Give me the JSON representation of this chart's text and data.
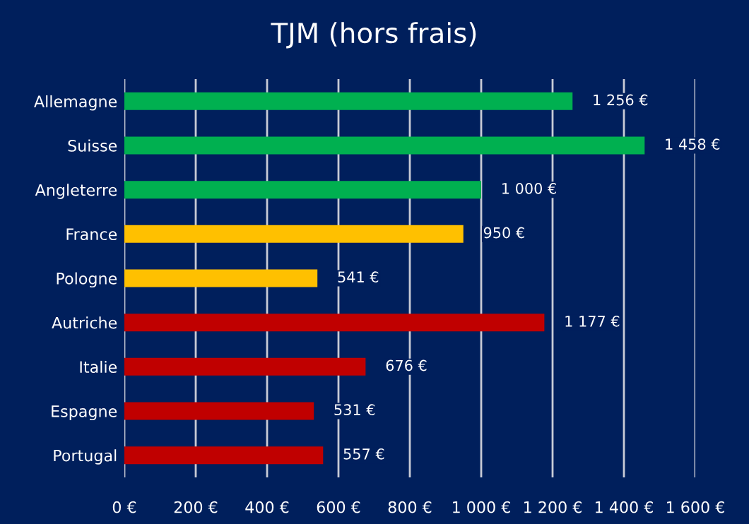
{
  "chart_data": {
    "type": "bar",
    "orientation": "horizontal",
    "title": "TJM (hors frais)",
    "categories": [
      "Allemagne",
      "Suisse",
      "Angleterre",
      "France",
      "Pologne",
      "Autriche",
      "Italie",
      "Espagne",
      "Portugal"
    ],
    "values": [
      1256,
      1458,
      1000,
      950,
      541,
      1177,
      676,
      531,
      557
    ],
    "colors": [
      "#00b050",
      "#00b050",
      "#00b050",
      "#ffc000",
      "#ffc000",
      "#c00000",
      "#c00000",
      "#c00000",
      "#c00000"
    ],
    "value_labels": [
      "1 256 €",
      "1 458 €",
      "1 000 €",
      "950 €",
      "541 €",
      "1 177 €",
      "676 €",
      "531 €",
      "557 €"
    ],
    "xlim": [
      0,
      1600
    ],
    "xticks": [
      {
        "value": 0,
        "label": "0 €"
      },
      {
        "value": 200,
        "label": "200 €"
      },
      {
        "value": 400,
        "label": "400 €"
      },
      {
        "value": 600,
        "label": "600 €"
      },
      {
        "value": 800,
        "label": "800 €"
      },
      {
        "value": 1000,
        "label": "1 000 €"
      },
      {
        "value": 1200,
        "label": "1 200 €"
      },
      {
        "value": 1400,
        "label": "1 400 €"
      },
      {
        "value": 1600,
        "label": "1 600 €"
      }
    ],
    "grid": "x",
    "legend": false
  }
}
